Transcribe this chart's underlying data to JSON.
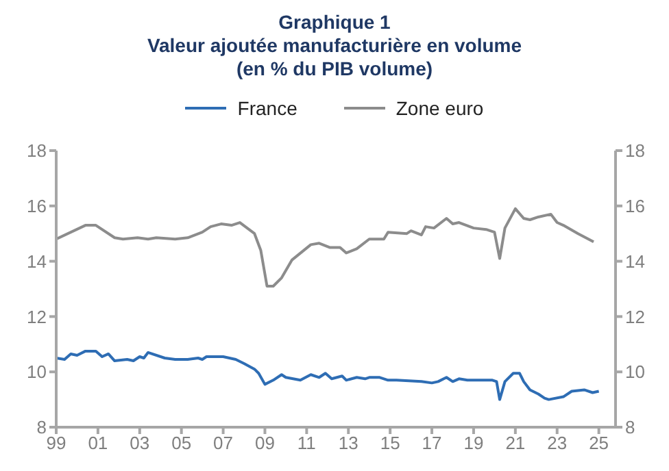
{
  "chart_data": {
    "type": "line",
    "title": "Graphique 1",
    "subtitle": "Valeur ajoutée manufacturière en volume\n(en % du PIB volume)",
    "legend": "top",
    "grid": false,
    "marker": "none",
    "line_style": "solid",
    "xlim": [
      1999,
      2025.8
    ],
    "xticks": [
      {
        "value": 1999,
        "label": "99"
      },
      {
        "value": 2001,
        "label": "01"
      },
      {
        "value": 2003,
        "label": "03"
      },
      {
        "value": 2005,
        "label": "05"
      },
      {
        "value": 2007,
        "label": "07"
      },
      {
        "value": 2009,
        "label": "09"
      },
      {
        "value": 2011,
        "label": "11"
      },
      {
        "value": 2013,
        "label": "13"
      },
      {
        "value": 2015,
        "label": "15"
      },
      {
        "value": 2017,
        "label": "17"
      },
      {
        "value": 2019,
        "label": "19"
      },
      {
        "value": 2021,
        "label": "21"
      },
      {
        "value": 2023,
        "label": "23"
      },
      {
        "value": 2025,
        "label": "25"
      }
    ],
    "ylim": [
      8,
      18
    ],
    "yticks": [
      8,
      10,
      12,
      14,
      16,
      18
    ],
    "y2lim": [
      8,
      18
    ],
    "y2ticks": [
      8,
      10,
      12,
      14,
      16,
      18
    ],
    "series": [
      {
        "name": "France",
        "color": "#2e6db4",
        "x": [
          1999.0,
          1999.4,
          1999.7,
          2000.0,
          2000.4,
          2000.9,
          2001.2,
          2001.5,
          2001.8,
          2002.4,
          2002.7,
          2003.0,
          2003.2,
          2003.4,
          2004.2,
          2004.7,
          2005.3,
          2005.8,
          2006.0,
          2006.2,
          2007.0,
          2007.6,
          2008.0,
          2008.5,
          2008.7,
          2009.0,
          2009.4,
          2009.8,
          2010.0,
          2010.7,
          2011.2,
          2011.6,
          2011.9,
          2012.2,
          2012.7,
          2012.9,
          2013.4,
          2013.8,
          2014.0,
          2014.5,
          2014.9,
          2015.3,
          2016.5,
          2017.0,
          2017.3,
          2017.7,
          2018.0,
          2018.3,
          2018.7,
          2019.9,
          2020.1,
          2020.25,
          2020.5,
          2020.9,
          2021.2,
          2021.4,
          2021.7,
          2022.1,
          2022.4,
          2022.6,
          2023.3,
          2023.7,
          2024.3,
          2024.7,
          2025.0
        ],
        "values": [
          10.5,
          10.45,
          10.65,
          10.6,
          10.75,
          10.75,
          10.55,
          10.65,
          10.4,
          10.45,
          10.4,
          10.55,
          10.5,
          10.7,
          10.5,
          10.45,
          10.45,
          10.5,
          10.45,
          10.55,
          10.55,
          10.45,
          10.3,
          10.1,
          9.95,
          9.55,
          9.7,
          9.9,
          9.8,
          9.7,
          9.9,
          9.8,
          9.95,
          9.75,
          9.85,
          9.7,
          9.8,
          9.75,
          9.8,
          9.8,
          9.7,
          9.7,
          9.65,
          9.6,
          9.65,
          9.8,
          9.65,
          9.75,
          9.7,
          9.7,
          9.65,
          9.0,
          9.65,
          9.95,
          9.95,
          9.65,
          9.35,
          9.2,
          9.05,
          9.0,
          9.1,
          9.3,
          9.35,
          9.25,
          9.3
        ]
      },
      {
        "name": "Zone euro",
        "color": "#8c8c8c",
        "x": [
          1999.0,
          2000.4,
          2000.9,
          2001.8,
          2002.2,
          2002.9,
          2003.4,
          2003.8,
          2004.7,
          2005.3,
          2006.0,
          2006.4,
          2006.9,
          2007.4,
          2007.8,
          2008.5,
          2008.8,
          2009.1,
          2009.4,
          2009.8,
          2010.3,
          2011.2,
          2011.6,
          2012.1,
          2012.6,
          2012.9,
          2013.4,
          2014.0,
          2014.7,
          2014.9,
          2015.8,
          2016.0,
          2016.5,
          2016.7,
          2017.1,
          2017.7,
          2018.0,
          2018.3,
          2019.0,
          2019.6,
          2020.0,
          2020.25,
          2020.5,
          2021.0,
          2021.4,
          2021.7,
          2022.1,
          2022.7,
          2023.0,
          2023.3,
          2024.0,
          2024.75
        ],
        "values": [
          14.8,
          15.3,
          15.3,
          14.85,
          14.8,
          14.85,
          14.8,
          14.85,
          14.8,
          14.85,
          15.05,
          15.25,
          15.35,
          15.3,
          15.4,
          15.0,
          14.4,
          13.1,
          13.1,
          13.4,
          14.05,
          14.6,
          14.65,
          14.5,
          14.5,
          14.3,
          14.45,
          14.8,
          14.8,
          15.05,
          15.0,
          15.1,
          14.95,
          15.25,
          15.2,
          15.55,
          15.35,
          15.4,
          15.2,
          15.15,
          15.05,
          14.1,
          15.2,
          15.9,
          15.55,
          15.5,
          15.6,
          15.7,
          15.4,
          15.3,
          15.0,
          14.7
        ]
      }
    ]
  }
}
